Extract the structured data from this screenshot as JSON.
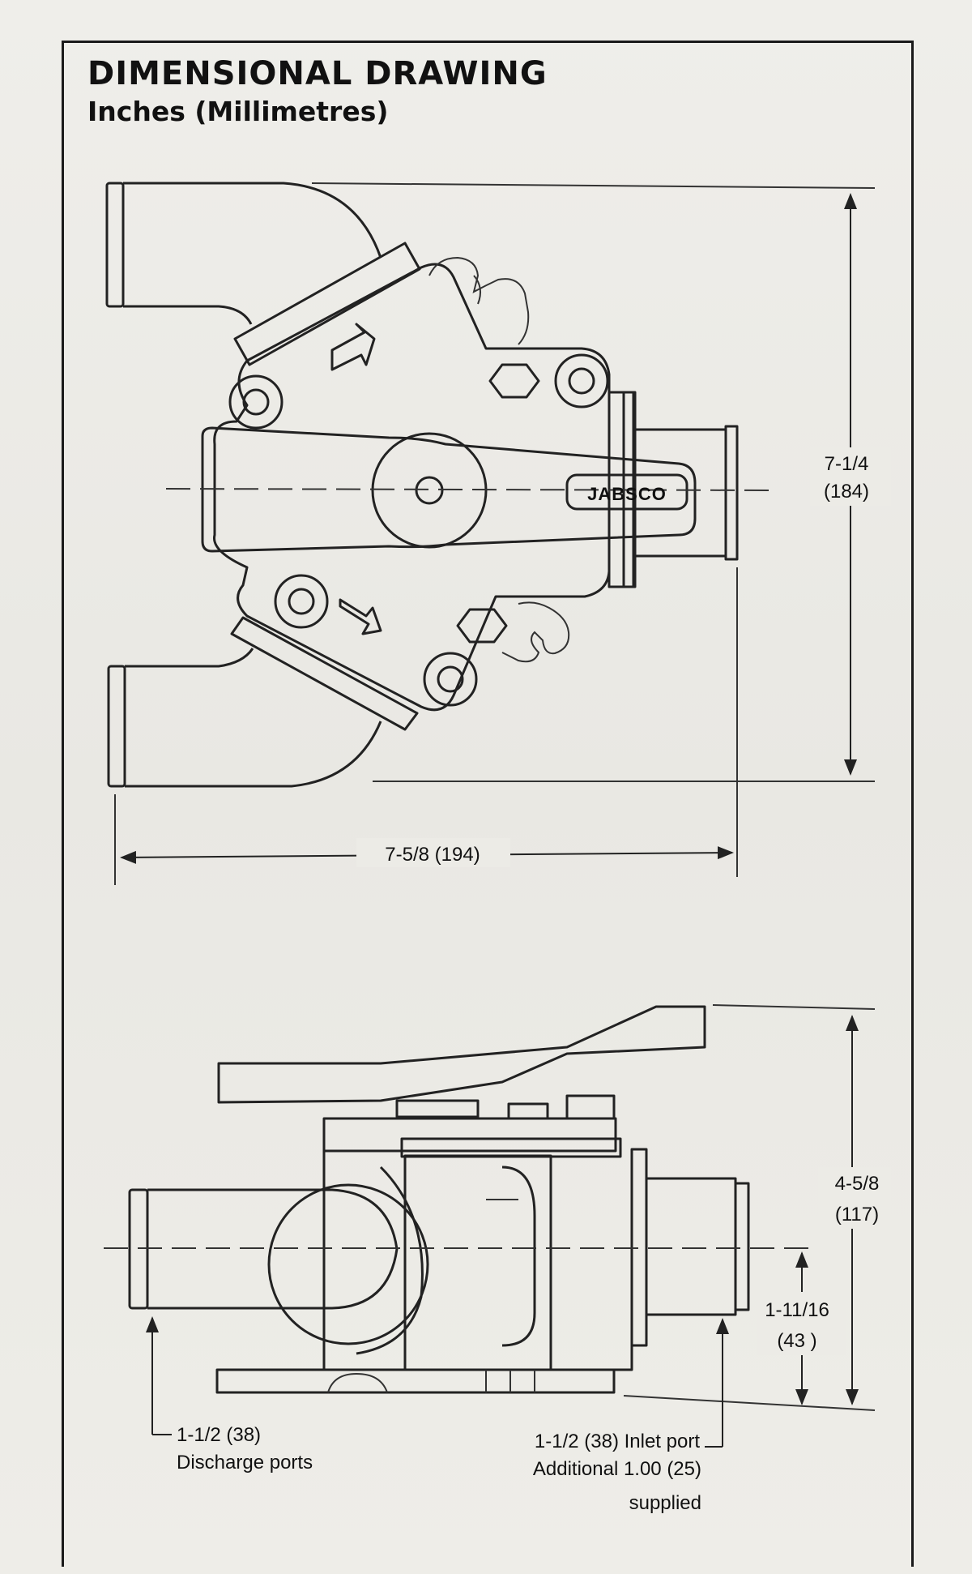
{
  "title": "DIMENSIONAL DRAWING",
  "subtitle": "Inches (Millimetres)",
  "top_view": {
    "brand_label": "JABSCO",
    "height_dim": {
      "inches": "7-1/4",
      "mm": "(184)"
    },
    "width_dim": "7-5/8 (194)"
  },
  "side_view": {
    "height_dim": {
      "inches": "4-5/8",
      "mm": "(117)"
    },
    "center_height_dim": {
      "inches": "1-11/16",
      "mm": "(43 )"
    },
    "discharge_note": {
      "line1": "1-1/2 (38)",
      "line2": "Discharge ports"
    },
    "inlet_note": {
      "line1": "1-1/2 (38) Inlet port",
      "line2": "Additional 1.00 (25)",
      "line3": "supplied"
    }
  }
}
